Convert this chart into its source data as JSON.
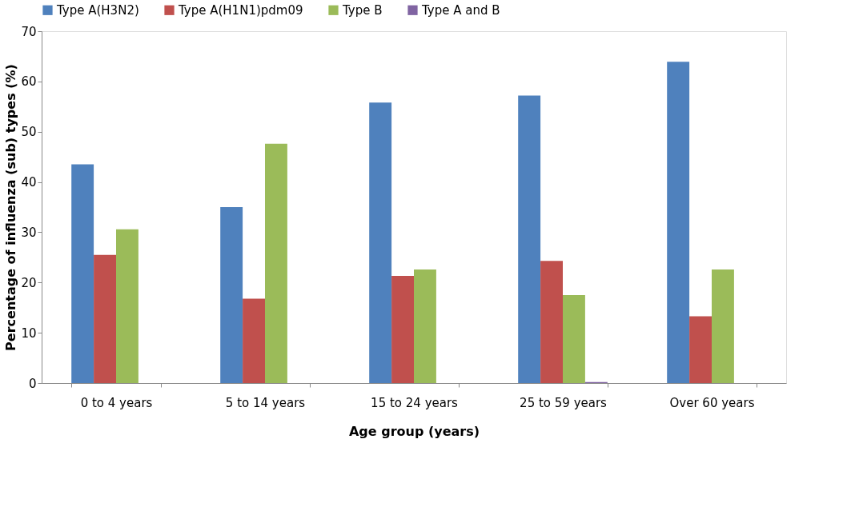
{
  "chart_data": {
    "type": "bar",
    "xlabel": "Age group (years)",
    "ylabel": "Percentage of influenza (sub) types (%)",
    "categories": [
      "0 to 4 years",
      "5 to 14 years",
      "15 to 24 years",
      "25 to 59 years",
      "Over 60 years"
    ],
    "series": [
      {
        "name": "Type A(H3N2)",
        "color": "#4f81bd",
        "values": [
          43.5,
          35.0,
          55.8,
          57.2,
          63.9
        ]
      },
      {
        "name": "Type A(H1N1)pdm09",
        "color": "#c0504d",
        "values": [
          25.5,
          16.8,
          21.3,
          24.3,
          13.3
        ]
      },
      {
        "name": "Type B",
        "color": "#9bbb59",
        "values": [
          30.6,
          47.6,
          22.6,
          17.5,
          22.6
        ]
      },
      {
        "name": "Type A and B",
        "color": "#8064a2",
        "values": [
          null,
          null,
          null,
          0.2,
          null
        ]
      }
    ],
    "ylim": [
      0,
      70
    ],
    "yticks": [
      0,
      10,
      20,
      30,
      40,
      50,
      60,
      70
    ],
    "grid": false,
    "legend": "top"
  }
}
